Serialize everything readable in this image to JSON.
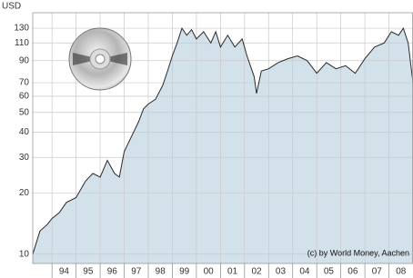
{
  "chart_data": {
    "type": "area",
    "y_label": "USD",
    "annotation": "(c) by World Money, Aachen",
    "log_scale": true,
    "grid": true,
    "color": "#d3e1eb",
    "line_color": "#2a2a2a",
    "xlim": [
      1993.2,
      2009.0
    ],
    "ylim": [
      9,
      155
    ],
    "yticks": [
      10,
      20,
      30,
      40,
      50,
      60,
      70,
      90,
      110,
      130
    ],
    "xticks": [
      {
        "value": 1994,
        "label": "94"
      },
      {
        "value": 1995,
        "label": "95"
      },
      {
        "value": 1996,
        "label": "96"
      },
      {
        "value": 1997,
        "label": "97"
      },
      {
        "value": 1998,
        "label": "98"
      },
      {
        "value": 1999,
        "label": "99"
      },
      {
        "value": 2000,
        "label": "00"
      },
      {
        "value": 2001,
        "label": "01"
      },
      {
        "value": 2002,
        "label": "02"
      },
      {
        "value": 2003,
        "label": "03"
      },
      {
        "value": 2004,
        "label": "04"
      },
      {
        "value": 2005,
        "label": "05"
      },
      {
        "value": 2006,
        "label": "06"
      },
      {
        "value": 2007,
        "label": "07"
      },
      {
        "value": 2008,
        "label": "08"
      }
    ],
    "x": [
      1993.2,
      1993.5,
      1993.8,
      1994.0,
      1994.3,
      1994.6,
      1995.0,
      1995.4,
      1995.7,
      1996.0,
      1996.3,
      1996.6,
      1996.8,
      1997.0,
      1997.3,
      1997.6,
      1997.8,
      1998.0,
      1998.3,
      1998.6,
      1998.8,
      1999.0,
      1999.2,
      1999.4,
      1999.6,
      1999.8,
      2000.0,
      2000.3,
      2000.6,
      2000.8,
      2001.0,
      2001.3,
      2001.6,
      2001.9,
      2002.1,
      2002.4,
      2002.5,
      2002.7,
      2003.0,
      2003.4,
      2003.8,
      2004.2,
      2004.6,
      2005.0,
      2005.4,
      2005.8,
      2006.2,
      2006.6,
      2007.0,
      2007.4,
      2007.8,
      2008.1,
      2008.4,
      2008.6,
      2008.8,
      2009.0
    ],
    "values": [
      10,
      13,
      14,
      15,
      16,
      18,
      19,
      23,
      25,
      24,
      29,
      25,
      24,
      32,
      38,
      45,
      52,
      55,
      58,
      68,
      80,
      95,
      110,
      130,
      120,
      128,
      115,
      125,
      110,
      125,
      105,
      120,
      105,
      115,
      95,
      75,
      62,
      80,
      82,
      88,
      92,
      95,
      90,
      78,
      88,
      82,
      85,
      78,
      92,
      105,
      110,
      125,
      120,
      130,
      110,
      70
    ]
  }
}
